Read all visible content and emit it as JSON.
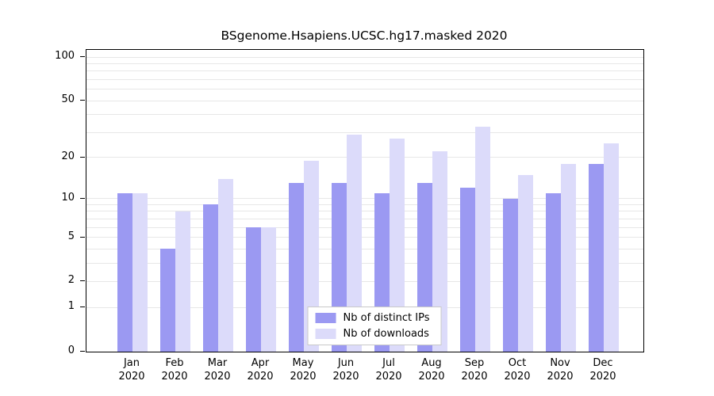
{
  "title": "BSgenome.Hsapiens.UCSC.hg17.masked 2020",
  "chart_data": {
    "type": "bar",
    "title": "BSgenome.Hsapiens.UCSC.hg17.masked 2020",
    "xlabel": "",
    "ylabel": "",
    "scale": "log1p",
    "grid": true,
    "legend_position": "bottom-center",
    "x_year": "2020",
    "categories": [
      "Jan",
      "Feb",
      "Mar",
      "Apr",
      "May",
      "Jun",
      "Jul",
      "Aug",
      "Sep",
      "Oct",
      "Nov",
      "Dec"
    ],
    "series": [
      {
        "name": "Nb of distinct IPs",
        "key": "distinct-ips",
        "color": "#9b99f2",
        "values": [
          11,
          4,
          9,
          6,
          13,
          13,
          11,
          13,
          12,
          10,
          11,
          18
        ]
      },
      {
        "name": "Nb of downloads",
        "key": "downloads",
        "color": "#dcdbfa",
        "values": [
          11,
          8,
          14,
          6,
          19,
          29,
          27,
          22,
          33,
          15,
          18,
          25
        ]
      }
    ],
    "y_ticks": [
      0,
      1,
      2,
      5,
      10,
      20,
      50,
      100
    ],
    "grid_values": [
      1,
      2,
      3,
      4,
      5,
      6,
      7,
      8,
      9,
      10,
      20,
      30,
      40,
      50,
      60,
      70,
      80,
      90,
      100
    ],
    "ylim": [
      0,
      100
    ]
  }
}
